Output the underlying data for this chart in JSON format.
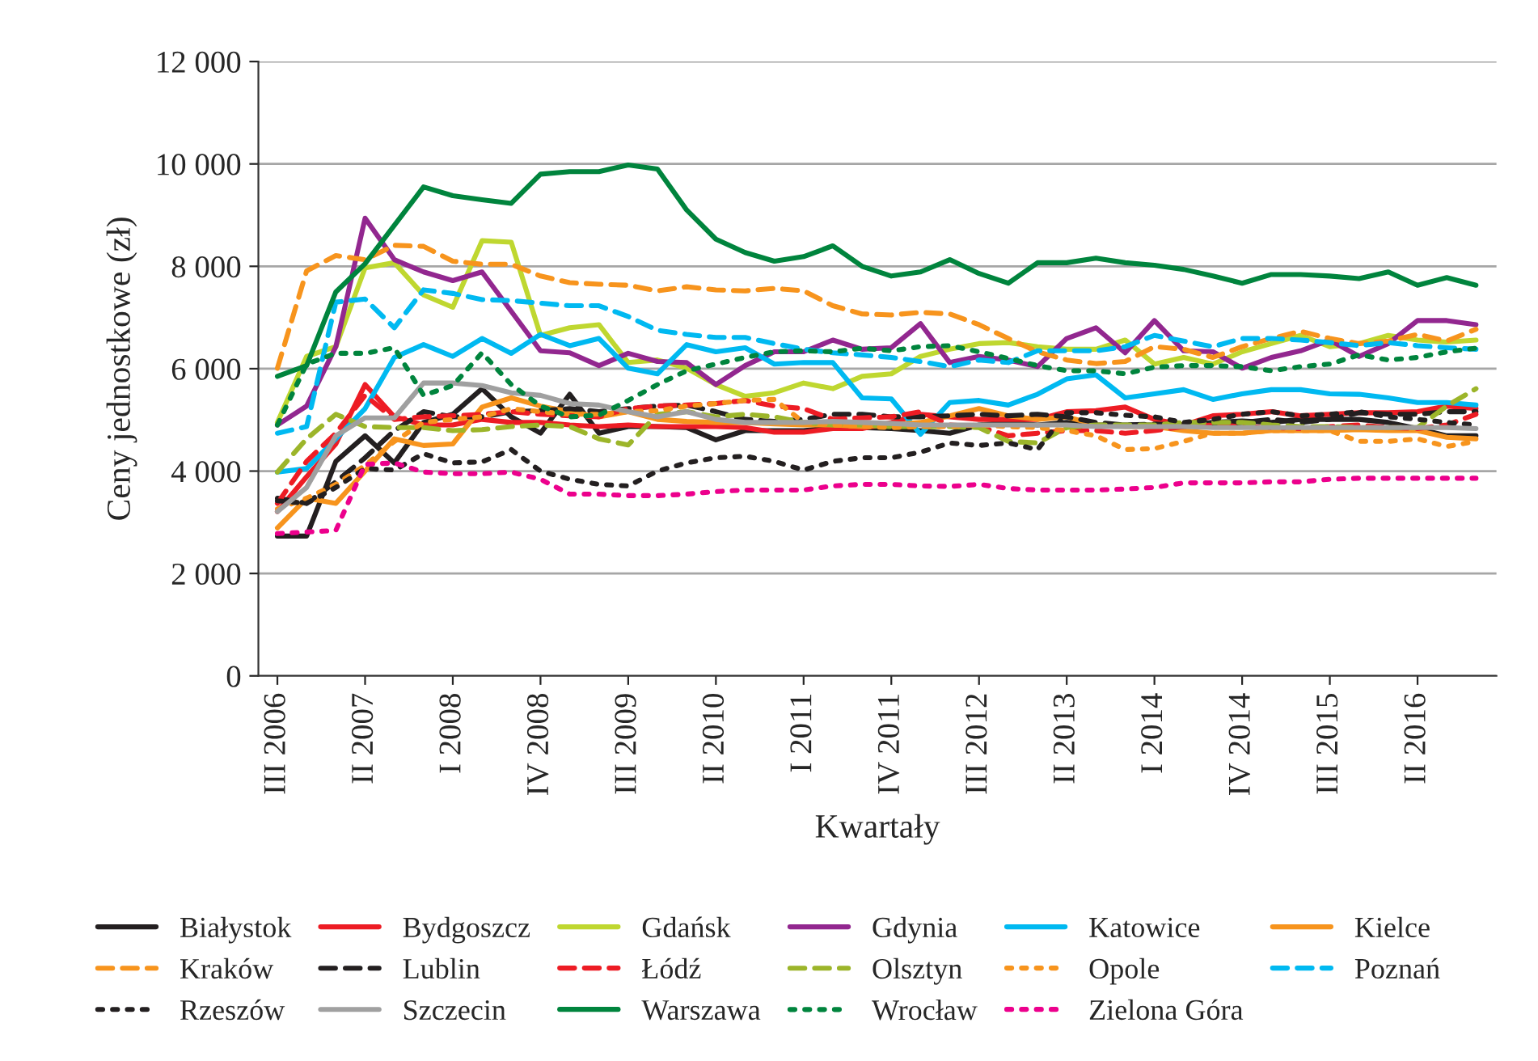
{
  "chart_data": {
    "type": "line",
    "xlabel": "Kwartały",
    "ylabel": "Ceny jednostkowe (zł)",
    "categories": [
      "III 2006",
      null,
      null,
      "II 2007",
      null,
      null,
      "I 2008",
      null,
      null,
      "IV 2008",
      null,
      null,
      "III 2009",
      null,
      null,
      "II 2010",
      null,
      null,
      "I 2011",
      null,
      null,
      "IV 2011",
      null,
      null,
      "III 2012",
      null,
      null,
      "II 2013",
      null,
      null,
      "I 2014",
      null,
      null,
      "IV 2014",
      null,
      null,
      "III 2015",
      null,
      null,
      "II 2016",
      null,
      null
    ],
    "ylim": [
      0,
      12000
    ],
    "yticks": [
      0,
      {
        "value": 2000,
        "label": "2 000"
      },
      {
        "value": 4000,
        "label": "4 000"
      },
      {
        "value": 6000,
        "label": "6 000"
      },
      {
        "value": 8000,
        "label": "8 000"
      },
      {
        "value": 10000,
        "label": "10 000"
      },
      {
        "value": 12000,
        "label": "12 000"
      }
    ],
    "grid": "y",
    "legend": "bottom",
    "marker": "none",
    "series": [
      {
        "name": "Białystok",
        "color": "#231f20",
        "line_style": "solid",
        "values": [
          2730,
          2730,
          4190,
          4690,
          4160,
          4950,
          5110,
          5610,
          5060,
          4740,
          5500,
          4740,
          4870,
          4870,
          4850,
          4610,
          4790,
          4790,
          4790,
          4850,
          4850,
          4830,
          4790,
          4740,
          4900,
          4950,
          4900,
          4950,
          4900,
          4900,
          4900,
          4900,
          4950,
          4980,
          4950,
          5010,
          5010,
          5010,
          4950,
          4830,
          4690,
          4690
        ]
      },
      {
        "name": "Bydgoszcz",
        "color": "#ed1c24",
        "line_style": "solid",
        "values": [
          3210,
          3890,
          4530,
          5690,
          5060,
          4900,
          4900,
          5010,
          4950,
          4950,
          4900,
          4870,
          4900,
          4870,
          4870,
          4870,
          4850,
          4760,
          4760,
          4830,
          4830,
          4950,
          5110,
          5060,
          5010,
          5010,
          5010,
          5160,
          5180,
          5250,
          5010,
          4900,
          5080,
          5110,
          5160,
          5080,
          5110,
          5140,
          5140,
          5160,
          5270,
          5220
        ]
      },
      {
        "name": "Gdańsk",
        "color": "#bfd730",
        "line_style": "solid",
        "values": [
          4950,
          6240,
          6430,
          7970,
          8070,
          7440,
          7200,
          8500,
          8470,
          6650,
          6800,
          6860,
          6120,
          6170,
          6010,
          5690,
          5460,
          5530,
          5720,
          5610,
          5850,
          5900,
          6240,
          6380,
          6490,
          6510,
          6430,
          6380,
          6380,
          6560,
          6090,
          6220,
          6090,
          6330,
          6490,
          6650,
          6430,
          6490,
          6650,
          6560,
          6520,
          6560
        ]
      },
      {
        "name": "Gdynia",
        "color": "#92278f",
        "line_style": "solid",
        "values": [
          4900,
          5270,
          6430,
          8940,
          8130,
          7890,
          7720,
          7890,
          7120,
          6350,
          6310,
          6060,
          6300,
          6140,
          6120,
          5690,
          6060,
          6330,
          6330,
          6560,
          6380,
          6410,
          6880,
          6120,
          6240,
          6170,
          6040,
          6590,
          6800,
          6310,
          6940,
          6350,
          6330,
          6010,
          6220,
          6350,
          6560,
          6240,
          6490,
          6940,
          6940,
          6860
        ]
      },
      {
        "name": "Katowice",
        "color": "#00b9f1",
        "line_style": "solid",
        "values": [
          3980,
          4050,
          4630,
          5220,
          6220,
          6470,
          6240,
          6590,
          6300,
          6670,
          6450,
          6590,
          6010,
          5900,
          6470,
          6330,
          6410,
          6090,
          6120,
          6120,
          5430,
          5410,
          4720,
          5340,
          5380,
          5290,
          5500,
          5800,
          5880,
          5430,
          5510,
          5590,
          5400,
          5510,
          5590,
          5590,
          5510,
          5500,
          5430,
          5340,
          5340,
          5290
        ]
      },
      {
        "name": "Kielce",
        "color": "#f7941d",
        "line_style": "solid",
        "values": [
          2890,
          3470,
          3370,
          4000,
          4630,
          4500,
          4530,
          5250,
          5430,
          5270,
          5160,
          5060,
          5160,
          5010,
          4970,
          4950,
          4950,
          4920,
          4900,
          4900,
          4870,
          4900,
          4950,
          5080,
          5220,
          5080,
          5010,
          5060,
          4900,
          4870,
          4870,
          4790,
          4740,
          4740,
          4790,
          4790,
          4790,
          4810,
          4790,
          4790,
          4660,
          4630
        ]
      },
      {
        "name": "Kraków",
        "color": "#f7941d",
        "line_style": "dashed",
        "values": [
          6010,
          7910,
          8210,
          8130,
          8410,
          8390,
          8100,
          8040,
          8040,
          7810,
          7680,
          7650,
          7630,
          7520,
          7600,
          7540,
          7520,
          7570,
          7520,
          7230,
          7070,
          7050,
          7100,
          7070,
          6860,
          6590,
          6330,
          6170,
          6100,
          6140,
          6430,
          6380,
          6220,
          6430,
          6590,
          6730,
          6590,
          6490,
          6540,
          6670,
          6540,
          6770
        ]
      },
      {
        "name": "Lublin",
        "color": "#231f20",
        "line_style": "dashed",
        "values": [
          3470,
          3370,
          3790,
          4260,
          4790,
          5160,
          5060,
          5060,
          5160,
          5180,
          5220,
          5160,
          5220,
          5270,
          5290,
          5160,
          5010,
          4970,
          5010,
          5110,
          5110,
          5060,
          5060,
          5080,
          5110,
          5080,
          5110,
          5060,
          4950,
          4900,
          4920,
          4900,
          4900,
          4950,
          5010,
          4950,
          5010,
          5140,
          5110,
          5110,
          5160,
          5160
        ]
      },
      {
        "name": "Łódź",
        "color": "#ed1c24",
        "line_style": "dashed",
        "values": [
          3370,
          4190,
          4740,
          5480,
          5010,
          5060,
          5080,
          5110,
          5160,
          5110,
          5080,
          5060,
          5220,
          5270,
          5290,
          5320,
          5380,
          5270,
          5220,
          5010,
          5040,
          5060,
          5160,
          4900,
          4870,
          4690,
          4740,
          4790,
          4790,
          4740,
          4790,
          4870,
          4900,
          4870,
          4850,
          4830,
          4870,
          4900,
          4850,
          4830,
          4900,
          5110
        ]
      },
      {
        "name": "Olsztyn",
        "color": "#9cb52a",
        "line_style": "dashed",
        "values": [
          3980,
          4630,
          5110,
          4870,
          4850,
          4850,
          4790,
          4810,
          4870,
          4900,
          4870,
          4630,
          4510,
          5110,
          5160,
          5060,
          5110,
          5060,
          4950,
          4900,
          4900,
          4870,
          4870,
          4870,
          4850,
          4580,
          4550,
          4850,
          4900,
          4900,
          4900,
          4950,
          4950,
          4950,
          4900,
          4870,
          4870,
          4850,
          4850,
          4850,
          5270,
          5610
        ]
      },
      {
        "name": "Opole",
        "color": "#f7941d",
        "line_style": "dotted",
        "values": [
          3260,
          3470,
          3740,
          4110,
          4580,
          4950,
          5010,
          5060,
          5220,
          5160,
          5110,
          5110,
          5160,
          5180,
          5270,
          5320,
          5380,
          5400,
          4950,
          4900,
          4870,
          4850,
          4870,
          4870,
          4900,
          4870,
          4850,
          4790,
          4690,
          4420,
          4440,
          4580,
          4740,
          4740,
          4790,
          4790,
          4790,
          4580,
          4580,
          4630,
          4480,
          4580
        ]
      },
      {
        "name": "Poznań",
        "color": "#00b9f1",
        "line_style": "dashed",
        "values": [
          4740,
          4870,
          7300,
          7360,
          6800,
          7540,
          7470,
          7350,
          7330,
          7280,
          7230,
          7230,
          7020,
          6750,
          6670,
          6610,
          6610,
          6490,
          6380,
          6310,
          6270,
          6220,
          6140,
          6040,
          6170,
          6120,
          6350,
          6350,
          6350,
          6430,
          6650,
          6540,
          6430,
          6590,
          6590,
          6560,
          6510,
          6450,
          6510,
          6450,
          6410,
          6380
        ]
      },
      {
        "name": "Rzeszów",
        "color": "#231f20",
        "line_style": "dotted",
        "values": [
          3420,
          3370,
          3680,
          4050,
          4020,
          4340,
          4160,
          4180,
          4420,
          4000,
          3840,
          3740,
          3710,
          4000,
          4160,
          4260,
          4290,
          4190,
          4020,
          4190,
          4260,
          4260,
          4370,
          4550,
          4500,
          4550,
          4420,
          5140,
          5140,
          5090,
          5060,
          4950,
          5010,
          5110,
          5160,
          5080,
          5110,
          5160,
          5060,
          5010,
          4950,
          4900
        ]
      },
      {
        "name": "Szczecin",
        "color": "#a0a0a0",
        "line_style": "solid",
        "values": [
          3210,
          3680,
          4690,
          5040,
          5040,
          5720,
          5720,
          5670,
          5530,
          5480,
          5320,
          5290,
          5160,
          5060,
          5160,
          5010,
          4950,
          4950,
          4950,
          4970,
          4950,
          4930,
          4900,
          4900,
          4900,
          4900,
          4900,
          4900,
          4870,
          4870,
          4870,
          4870,
          4850,
          4850,
          4850,
          4850,
          4850,
          4850,
          4850,
          4850,
          4850,
          4830
        ]
      },
      {
        "name": "Warszawa",
        "color": "#00843d",
        "line_style": "solid",
        "values": [
          5850,
          6060,
          7500,
          8050,
          8800,
          9550,
          9380,
          9300,
          9230,
          9800,
          9850,
          9850,
          9980,
          9900,
          9100,
          8530,
          8270,
          8100,
          8190,
          8400,
          8000,
          7810,
          7890,
          8130,
          7860,
          7670,
          8070,
          8070,
          8160,
          8070,
          8020,
          7940,
          7810,
          7670,
          7840,
          7840,
          7810,
          7760,
          7890,
          7630,
          7780,
          7630
        ]
      },
      {
        "name": "Wrocław",
        "color": "#00843d",
        "line_style": "dotted",
        "values": [
          4900,
          6090,
          6300,
          6300,
          6410,
          5480,
          5670,
          6310,
          5690,
          5270,
          5060,
          5090,
          5380,
          5690,
          5960,
          6090,
          6220,
          6330,
          6350,
          6330,
          6400,
          6350,
          6430,
          6450,
          6330,
          6200,
          6060,
          5960,
          5960,
          5900,
          6030,
          6060,
          6060,
          6040,
          5960,
          6040,
          6090,
          6270,
          6170,
          6220,
          6330,
          6400
        ]
      },
      {
        "name": "Zielona Góra",
        "color": "#ec008c",
        "line_style": "dotted",
        "values": [
          2780,
          2810,
          2840,
          4130,
          4160,
          3980,
          3950,
          3950,
          3980,
          3840,
          3550,
          3550,
          3520,
          3520,
          3550,
          3600,
          3630,
          3630,
          3630,
          3710,
          3740,
          3740,
          3710,
          3700,
          3740,
          3660,
          3630,
          3630,
          3630,
          3650,
          3680,
          3770,
          3770,
          3770,
          3790,
          3790,
          3840,
          3860,
          3860,
          3860,
          3860,
          3860
        ]
      }
    ]
  }
}
